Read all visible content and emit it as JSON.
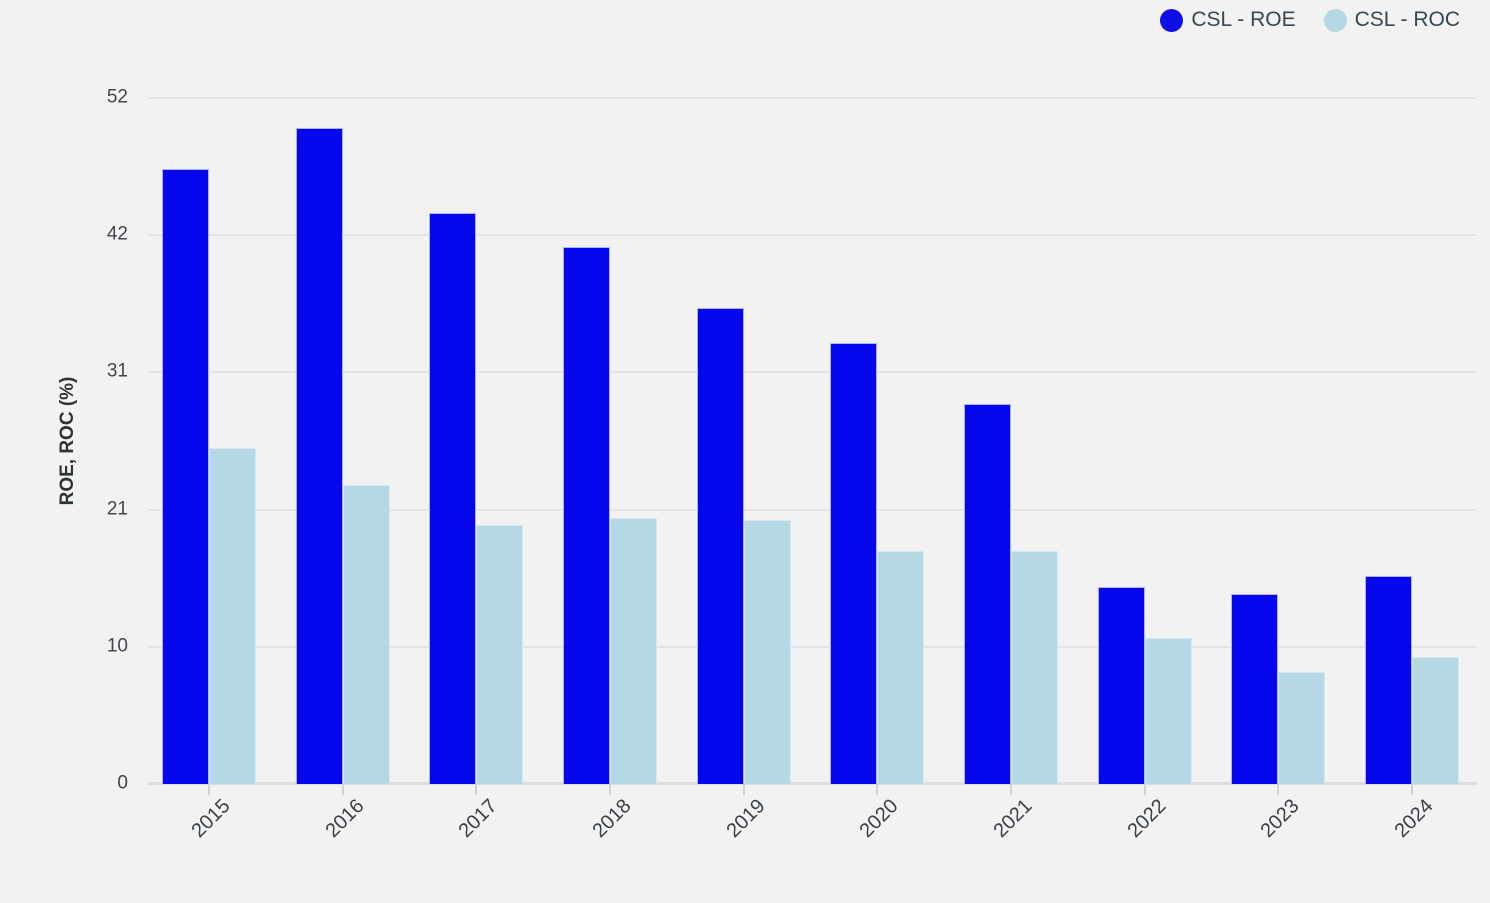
{
  "legend": {
    "items": [
      {
        "label": "CSL - ROE",
        "color": "#0d0de4"
      },
      {
        "label": "CSL - ROC",
        "color": "#b5d8e4"
      }
    ]
  },
  "chart_data": {
    "type": "bar",
    "title": "",
    "xlabel": "",
    "ylabel": "ROE, ROC (%)",
    "categories": [
      "2015",
      "2016",
      "2017",
      "2018",
      "2019",
      "2020",
      "2021",
      "2022",
      "2023",
      "2024"
    ],
    "series": [
      {
        "name": "CSL - ROE",
        "color": "#0707ee",
        "values": [
          46.6,
          49.7,
          43.3,
          40.7,
          36.1,
          33.4,
          28.8,
          14.9,
          14.4,
          15.8
        ]
      },
      {
        "name": "CSL - ROC",
        "color": "#b5d8e4",
        "values": [
          25.5,
          22.7,
          19.6,
          20.2,
          20.0,
          17.7,
          17.7,
          11.1,
          8.5,
          9.6
        ]
      }
    ],
    "ylim": [
      0,
      52
    ],
    "yticks": [
      {
        "value": 0,
        "label": "0"
      },
      {
        "value": 10.4,
        "label": "10"
      },
      {
        "value": 20.8,
        "label": "21"
      },
      {
        "value": 31.2,
        "label": "31"
      },
      {
        "value": 41.6,
        "label": "42"
      },
      {
        "value": 52,
        "label": "52"
      }
    ],
    "grid": true,
    "legend_position": "top-right"
  }
}
